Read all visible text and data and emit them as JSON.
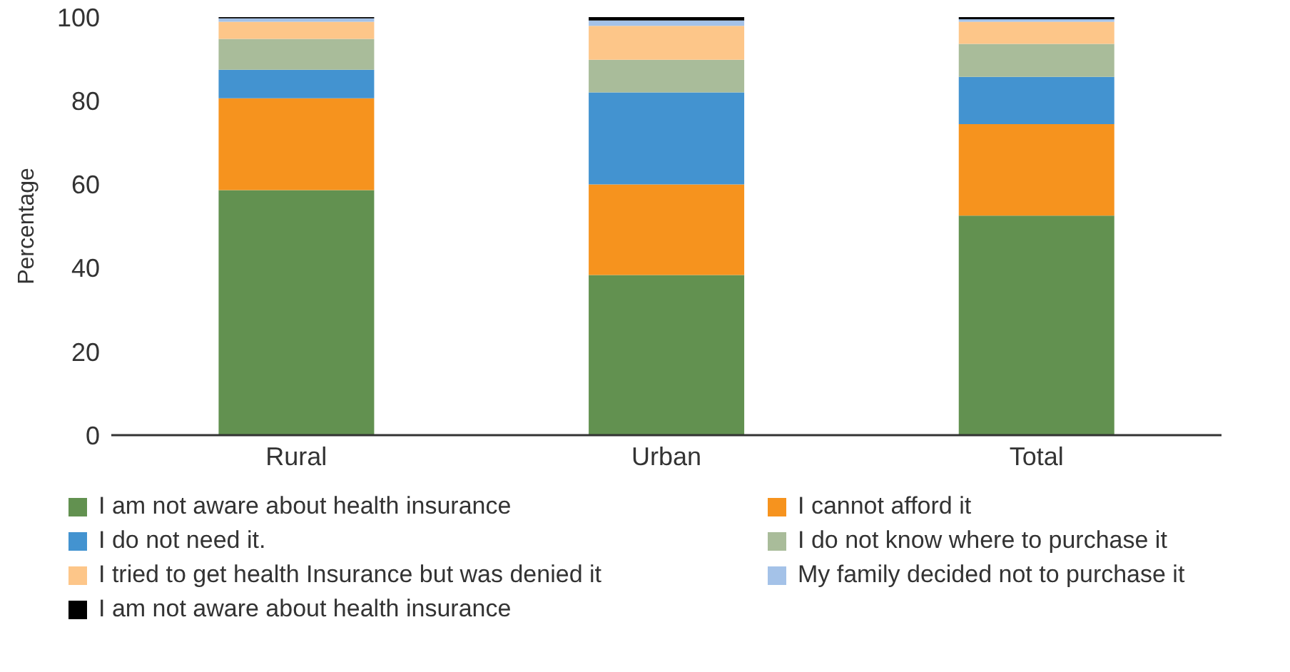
{
  "chart_data": {
    "type": "bar",
    "stacked": true,
    "ylabel": "Percentage",
    "categories": [
      "Rural",
      "Urban",
      "Total"
    ],
    "ylim": [
      0,
      100
    ],
    "yticks": [
      0,
      20,
      40,
      60,
      80,
      100
    ],
    "grid": false,
    "legend": "bottom",
    "series": [
      {
        "name": "I am not aware about health insurance",
        "color": "#629150",
        "values": [
          58.6,
          38.3,
          52.5
        ]
      },
      {
        "name": "I cannot afford it",
        "color": "#f6931e",
        "values": [
          22.0,
          21.7,
          21.9
        ]
      },
      {
        "name": "I do not need it.",
        "color": "#4393d0",
        "values": [
          6.8,
          22.0,
          11.3
        ]
      },
      {
        "name": "I do not know where to purchase it",
        "color": "#a9bc9a",
        "values": [
          7.4,
          7.8,
          7.9
        ]
      },
      {
        "name": "I tried to get health Insurance but was denied it",
        "color": "#fdc689",
        "values": [
          4.1,
          8.1,
          5.3
        ]
      },
      {
        "name": "My family decided not to purchase it",
        "color": "#a4c2e8",
        "values": [
          0.8,
          1.3,
          0.6
        ]
      },
      {
        "name": "I am not aware about health insurance",
        "color": "#000000",
        "values": [
          0.3,
          0.8,
          0.6
        ]
      }
    ]
  }
}
